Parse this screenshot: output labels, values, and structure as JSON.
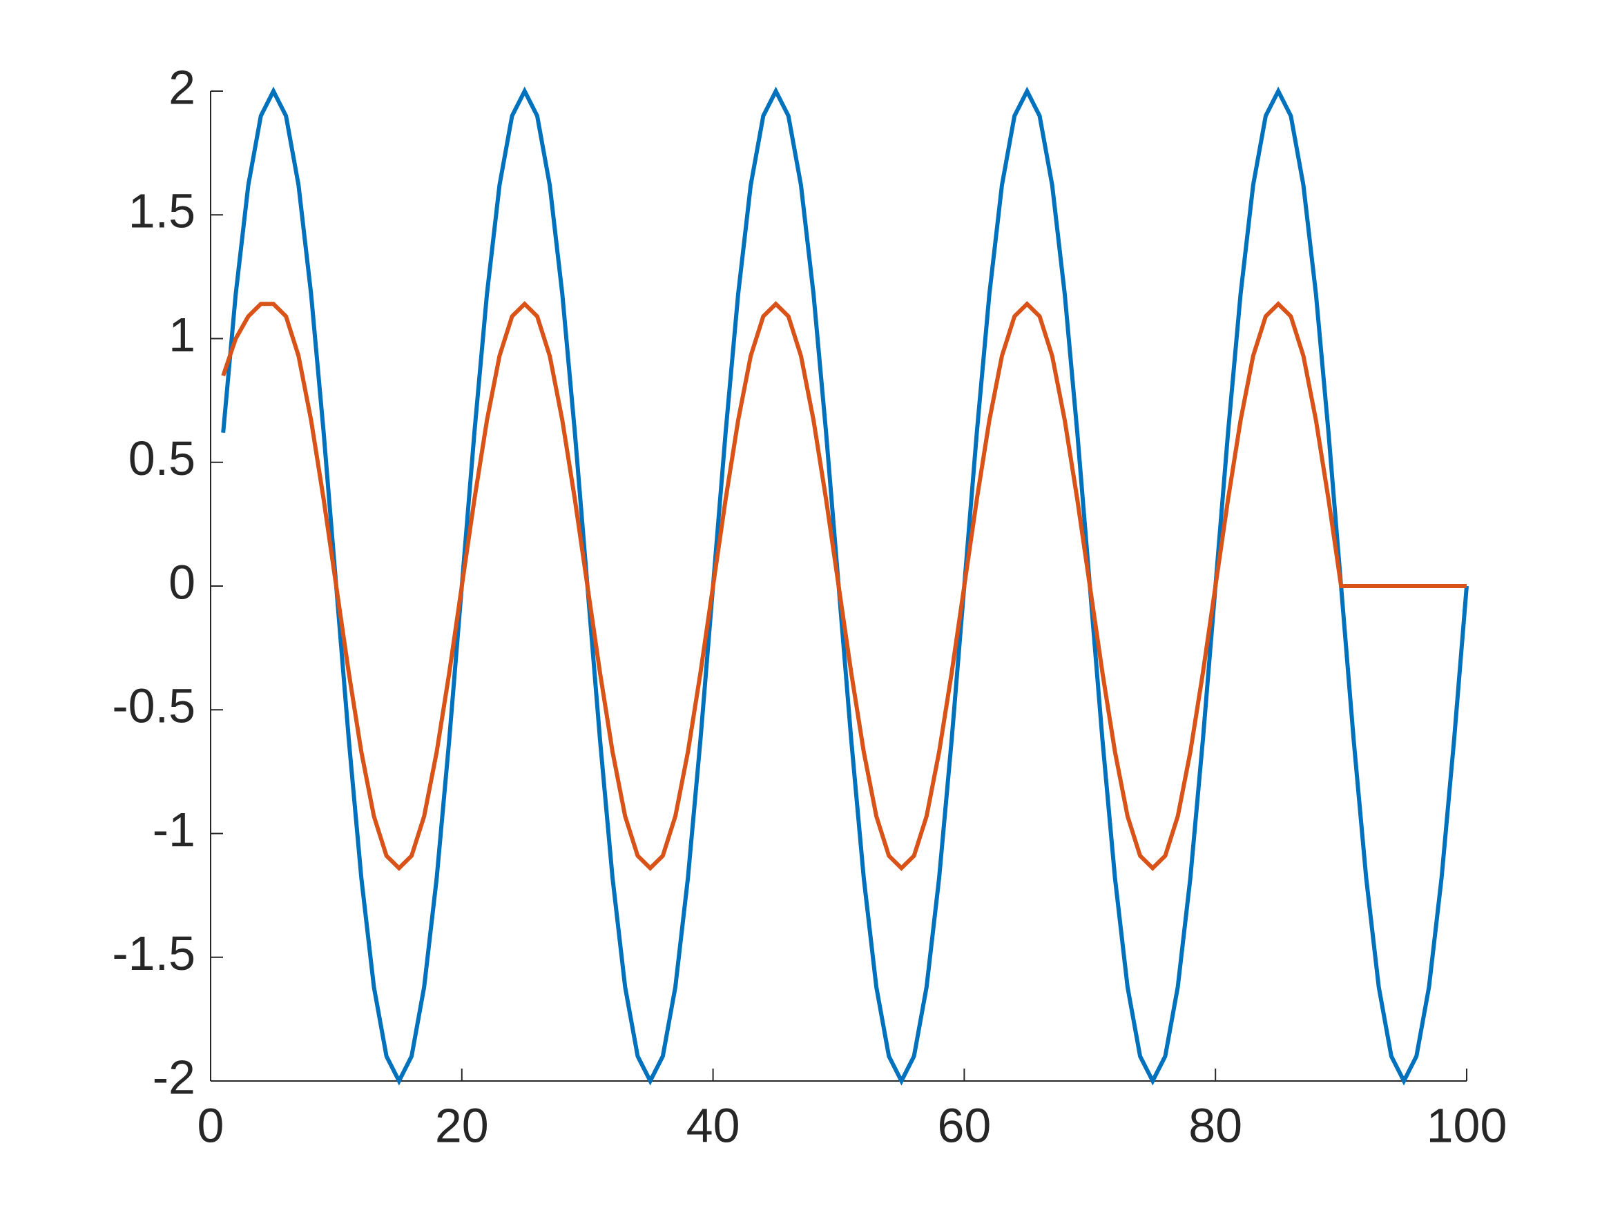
{
  "chart_data": {
    "type": "line",
    "x": [
      1,
      2,
      3,
      4,
      5,
      6,
      7,
      8,
      9,
      10,
      11,
      12,
      13,
      14,
      15,
      16,
      17,
      18,
      19,
      20,
      21,
      22,
      23,
      24,
      25,
      26,
      27,
      28,
      29,
      30,
      31,
      32,
      33,
      34,
      35,
      36,
      37,
      38,
      39,
      40,
      41,
      42,
      43,
      44,
      45,
      46,
      47,
      48,
      49,
      50,
      51,
      52,
      53,
      54,
      55,
      56,
      57,
      58,
      59,
      60,
      61,
      62,
      63,
      64,
      65,
      66,
      67,
      68,
      69,
      70,
      71,
      72,
      73,
      74,
      75,
      76,
      77,
      78,
      79,
      80,
      81,
      82,
      83,
      84,
      85,
      86,
      87,
      88,
      89,
      90,
      91,
      92,
      93,
      94,
      95,
      96,
      97,
      98,
      99,
      100
    ],
    "series": [
      {
        "color": "#0072BD",
        "values": [
          0.62,
          1.18,
          1.62,
          1.9,
          2,
          1.9,
          1.62,
          1.18,
          0.62,
          0,
          -0.62,
          -1.18,
          -1.62,
          -1.9,
          -2,
          -1.9,
          -1.62,
          -1.18,
          -0.62,
          0,
          0.62,
          1.18,
          1.62,
          1.9,
          2,
          1.9,
          1.62,
          1.18,
          0.62,
          0,
          -0.62,
          -1.18,
          -1.62,
          -1.9,
          -2,
          -1.9,
          -1.62,
          -1.18,
          -0.62,
          0,
          0.62,
          1.18,
          1.62,
          1.9,
          2,
          1.9,
          1.62,
          1.18,
          0.62,
          0,
          -0.62,
          -1.18,
          -1.62,
          -1.9,
          -2,
          -1.9,
          -1.62,
          -1.18,
          -0.62,
          0,
          0.62,
          1.18,
          1.62,
          1.9,
          2,
          1.9,
          1.62,
          1.18,
          0.62,
          0,
          -0.62,
          -1.18,
          -1.62,
          -1.9,
          -2,
          -1.9,
          -1.62,
          -1.18,
          -0.62,
          0,
          0.62,
          1.18,
          1.62,
          1.9,
          2,
          1.9,
          1.62,
          1.18,
          0.62,
          0,
          -0.62,
          -1.18,
          -1.62,
          -1.9,
          -2,
          -1.9,
          -1.62,
          -1.18,
          -0.62,
          0
        ]
      },
      {
        "color": "#D95319",
        "values": [
          0.85,
          1,
          1.09,
          1.14,
          1.14,
          1.09,
          0.93,
          0.67,
          0.35,
          0,
          -0.35,
          -0.67,
          -0.93,
          -1.09,
          -1.14,
          -1.09,
          -0.93,
          -0.67,
          -0.35,
          0,
          0.35,
          0.67,
          0.93,
          1.09,
          1.14,
          1.09,
          0.93,
          0.67,
          0.35,
          0,
          -0.35,
          -0.67,
          -0.93,
          -1.09,
          -1.14,
          -1.09,
          -0.93,
          -0.67,
          -0.35,
          0,
          0.35,
          0.67,
          0.93,
          1.09,
          1.14,
          1.09,
          0.93,
          0.67,
          0.35,
          0,
          -0.35,
          -0.67,
          -0.93,
          -1.09,
          -1.14,
          -1.09,
          -0.93,
          -0.67,
          -0.35,
          0,
          0.35,
          0.67,
          0.93,
          1.09,
          1.14,
          1.09,
          0.93,
          0.67,
          0.35,
          0,
          -0.35,
          -0.67,
          -0.93,
          -1.09,
          -1.14,
          -1.09,
          -0.93,
          -0.67,
          -0.35,
          0,
          0.35,
          0.67,
          0.93,
          1.09,
          1.14,
          1.09,
          0.93,
          0.67,
          0.35,
          0,
          0,
          0,
          0,
          0,
          0,
          0,
          0,
          0,
          0,
          0
        ]
      }
    ],
    "xlim": [
      0,
      100
    ],
    "xticks": [
      0,
      20,
      40,
      60,
      80,
      100
    ],
    "ylim": [
      -2,
      2
    ],
    "yticks": [
      -2,
      -1.5,
      -1,
      -0.5,
      0,
      0.5,
      1,
      1.5,
      2
    ]
  }
}
